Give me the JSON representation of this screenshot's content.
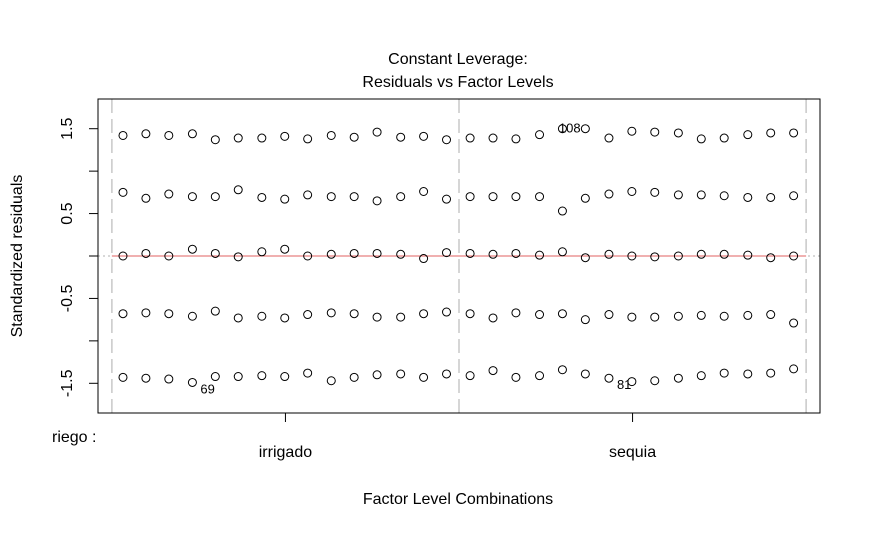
{
  "chart_data": {
    "type": "scatter",
    "title": "Constant Leverage:",
    "subtitle": "Residuals vs Factor Levels",
    "xlabel": "Factor Level Combinations",
    "ylabel": "Standardized residuals",
    "factor_label": "riego :",
    "levels": [
      "irrigado",
      "sequia"
    ],
    "xlim": [
      -0.02,
      1.02
    ],
    "ylim": [
      -1.85,
      1.85
    ],
    "yticks": [
      -1.5,
      -0.5,
      0.5,
      1.5
    ],
    "ytick_labels": [
      "-1.5",
      "-0.5",
      "0.5",
      "1.5"
    ],
    "minor_yticks": [
      -1,
      0,
      1
    ],
    "level_boundaries": [
      0,
      0.5,
      1
    ],
    "level_centers": [
      0.25,
      0.75
    ],
    "reference_line": 0,
    "columns": [
      {
        "x": 0.016,
        "y": [
          1.42,
          0.75,
          0.0,
          -0.68,
          -1.43
        ]
      },
      {
        "x": 0.049,
        "y": [
          1.44,
          0.68,
          0.03,
          -0.67,
          -1.44
        ]
      },
      {
        "x": 0.082,
        "y": [
          1.42,
          0.73,
          0.0,
          -0.68,
          -1.45
        ]
      },
      {
        "x": 0.116,
        "y": [
          1.44,
          0.7,
          0.08,
          -0.71,
          -1.49
        ]
      },
      {
        "x": 0.149,
        "y": [
          1.37,
          0.7,
          0.03,
          -0.65,
          -1.42
        ]
      },
      {
        "x": 0.182,
        "y": [
          1.39,
          0.78,
          -0.01,
          -0.73,
          -1.42
        ]
      },
      {
        "x": 0.216,
        "y": [
          1.39,
          0.69,
          0.05,
          -0.71,
          -1.41
        ]
      },
      {
        "x": 0.249,
        "y": [
          1.41,
          0.67,
          0.08,
          -0.73,
          -1.42
        ]
      },
      {
        "x": 0.282,
        "y": [
          1.38,
          0.72,
          0.0,
          -0.69,
          -1.38
        ]
      },
      {
        "x": 0.316,
        "y": [
          1.42,
          0.7,
          0.02,
          -0.67,
          -1.47
        ]
      },
      {
        "x": 0.349,
        "y": [
          1.4,
          0.7,
          0.03,
          -0.68,
          -1.43
        ]
      },
      {
        "x": 0.382,
        "y": [
          1.46,
          0.65,
          0.03,
          -0.72,
          -1.4
        ]
      },
      {
        "x": 0.416,
        "y": [
          1.4,
          0.7,
          0.02,
          -0.72,
          -1.39
        ]
      },
      {
        "x": 0.449,
        "y": [
          1.41,
          0.76,
          -0.03,
          -0.68,
          -1.43
        ]
      },
      {
        "x": 0.482,
        "y": [
          1.37,
          0.67,
          0.04,
          -0.66,
          -1.39
        ]
      },
      {
        "x": 0.516,
        "y": [
          1.39,
          0.7,
          0.03,
          -0.68,
          -1.41
        ]
      },
      {
        "x": 0.549,
        "y": [
          1.39,
          0.7,
          0.02,
          -0.73,
          -1.35
        ]
      },
      {
        "x": 0.582,
        "y": [
          1.38,
          0.7,
          0.03,
          -0.67,
          -1.43
        ]
      },
      {
        "x": 0.616,
        "y": [
          1.43,
          0.7,
          0.01,
          -0.69,
          -1.41
        ]
      },
      {
        "x": 0.649,
        "y": [
          1.5,
          0.53,
          0.05,
          -0.68,
          -1.34
        ]
      },
      {
        "x": 0.682,
        "y": [
          1.5,
          0.68,
          -0.02,
          -0.75,
          -1.39
        ]
      },
      {
        "x": 0.716,
        "y": [
          1.39,
          0.73,
          0.02,
          -0.69,
          -1.44
        ]
      },
      {
        "x": 0.749,
        "y": [
          1.47,
          0.76,
          0.0,
          -0.72,
          -1.48
        ]
      },
      {
        "x": 0.782,
        "y": [
          1.46,
          0.75,
          -0.01,
          -0.72,
          -1.47
        ]
      },
      {
        "x": 0.816,
        "y": [
          1.45,
          0.72,
          0.0,
          -0.71,
          -1.44
        ]
      },
      {
        "x": 0.849,
        "y": [
          1.38,
          0.72,
          0.02,
          -0.7,
          -1.41
        ]
      },
      {
        "x": 0.882,
        "y": [
          1.39,
          0.71,
          0.02,
          -0.71,
          -1.38
        ]
      },
      {
        "x": 0.916,
        "y": [
          1.43,
          0.69,
          0.01,
          -0.7,
          -1.39
        ]
      },
      {
        "x": 0.949,
        "y": [
          1.45,
          0.69,
          -0.02,
          -0.69,
          -1.38
        ]
      },
      {
        "x": 0.982,
        "y": [
          1.45,
          0.71,
          0.0,
          -0.79,
          -1.33
        ]
      }
    ],
    "annotations": [
      {
        "label": "108",
        "x": 0.667,
        "y": 1.5
      },
      {
        "label": "69",
        "x": 0.116,
        "y": -1.49
      },
      {
        "label": "81",
        "x": 0.716,
        "y": -1.44
      }
    ],
    "colors": {
      "points": "#000000",
      "reference_line": "#f4a0a0",
      "fit_line": "#e06060",
      "boundary_lines": "#c8c8c8"
    }
  }
}
